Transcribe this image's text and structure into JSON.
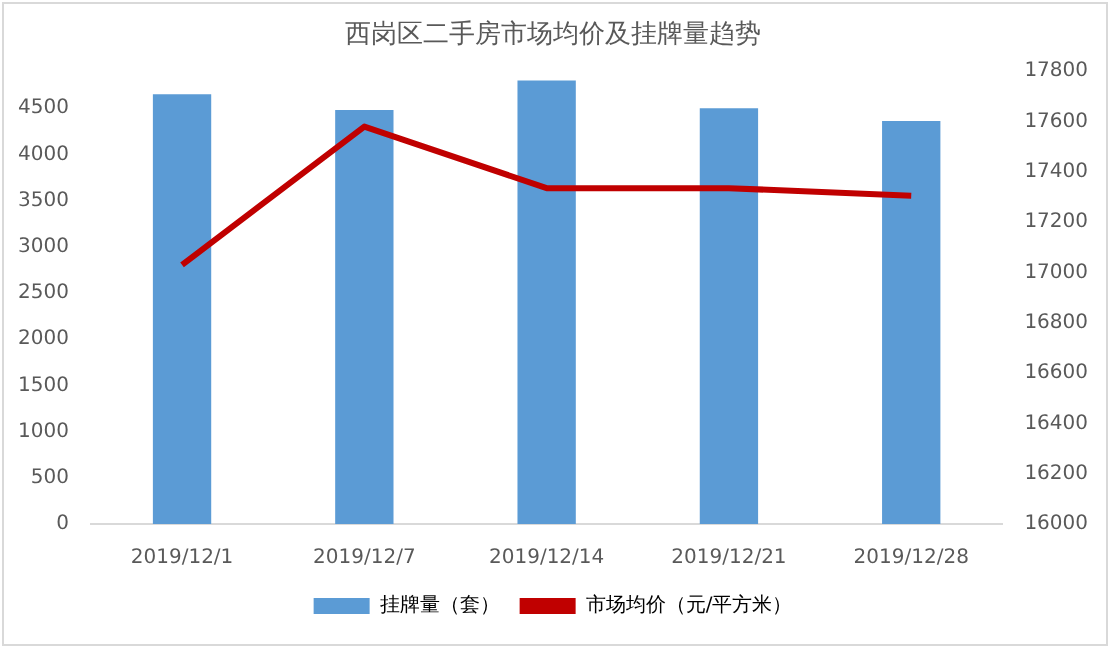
{
  "chart_data": {
    "type": "bar",
    "title": "西岗区二手房市场均价及挂牌量趋势",
    "categories": [
      "2019/12/1",
      "2019/12/7",
      "2019/12/14",
      "2019/12/21",
      "2019/12/28"
    ],
    "series": [
      {
        "name": "挂牌量（套）",
        "color": "#5b9bd5",
        "values": [
          4650,
          4480,
          4800,
          4500,
          4360
        ]
      },
      {
        "name": "市场均价（元/平方米）",
        "type": "line",
        "axis": "y2",
        "color": "#c00000",
        "values": [
          17030,
          17580,
          17335,
          17335,
          17305
        ]
      }
    ],
    "ylim": [
      0,
      4900
    ],
    "yticks": [
      0,
      500,
      1000,
      1500,
      2000,
      2500,
      3000,
      3500,
      4000,
      4500
    ],
    "y2lim": [
      16000,
      17800
    ],
    "y2ticks": [
      16000,
      16200,
      16400,
      16600,
      16800,
      17000,
      17200,
      17400,
      17600,
      17800
    ],
    "grid": false,
    "legend": "bottom",
    "marker": "none"
  }
}
